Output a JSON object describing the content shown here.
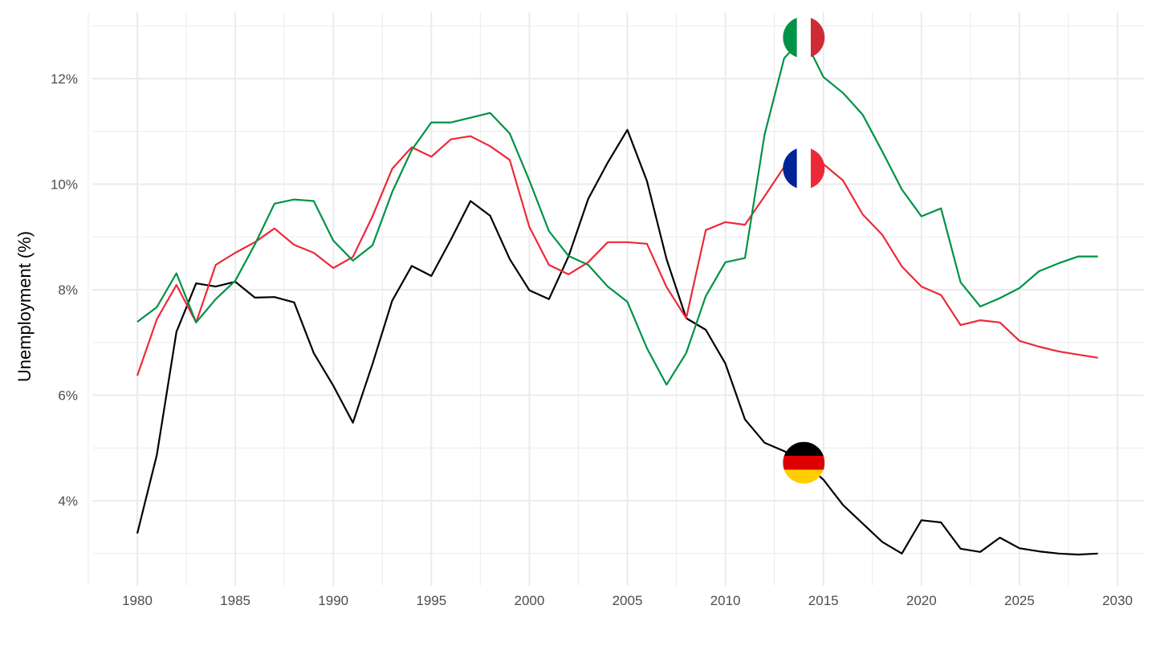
{
  "chart_data": {
    "type": "line",
    "title": "",
    "xlabel": "",
    "ylabel": "Unemployment (%)",
    "xlim": [
      1977.5,
      2031.5
    ],
    "ylim": [
      2.6,
      13.3
    ],
    "x_ticks": [
      1980,
      1985,
      1990,
      1995,
      2000,
      2005,
      2010,
      2015,
      2020,
      2025,
      2030
    ],
    "x_tick_labels": [
      "1980",
      "1985",
      "1990",
      "1995",
      "2000",
      "2005",
      "2010",
      "2015",
      "2020",
      "2025",
      "2030"
    ],
    "y_ticks": [
      4,
      6,
      8,
      10,
      12
    ],
    "y_tick_labels": [
      "4%",
      "6%",
      "8%",
      "10%",
      "12%"
    ],
    "grid": true,
    "legend": "flags at 2014",
    "x": [
      1980,
      1981,
      1982,
      1983,
      1984,
      1985,
      1986,
      1987,
      1988,
      1989,
      1990,
      1991,
      1992,
      1993,
      1994,
      1995,
      1996,
      1997,
      1998,
      1999,
      2000,
      2001,
      2002,
      2003,
      2004,
      2005,
      2006,
      2007,
      2008,
      2009,
      2010,
      2011,
      2012,
      2013,
      2014,
      2015,
      2016,
      2017,
      2018,
      2019,
      2020,
      2021,
      2022,
      2023,
      2024,
      2025,
      2026,
      2027,
      2028,
      2029
    ],
    "series": [
      {
        "name": "Germany",
        "color": "#000000",
        "flag": [
          "#000000",
          "#DD0000",
          "#FFCE00"
        ],
        "flag_type": "horizontal",
        "values": [
          3.38,
          4.87,
          7.2,
          8.12,
          8.06,
          8.15,
          7.85,
          7.86,
          7.76,
          6.8,
          6.18,
          5.48,
          6.59,
          7.79,
          8.45,
          8.26,
          8.95,
          9.68,
          9.4,
          8.58,
          7.99,
          7.82,
          8.63,
          9.72,
          10.41,
          11.03,
          10.06,
          8.58,
          7.46,
          7.24,
          6.6,
          5.54,
          5.1,
          4.94,
          4.72,
          4.4,
          3.92,
          3.57,
          3.22,
          3.0,
          3.63,
          3.59,
          3.09,
          3.03,
          3.3,
          3.1,
          3.04,
          3.0,
          2.98,
          3.0
        ]
      },
      {
        "name": "France",
        "color": "#ED2939",
        "flag": [
          "#002395",
          "#FFFFFF",
          "#ED2939"
        ],
        "flag_type": "vertical",
        "values": [
          6.37,
          7.44,
          8.09,
          7.38,
          8.47,
          8.7,
          8.9,
          9.16,
          8.85,
          8.7,
          8.41,
          8.62,
          9.39,
          10.29,
          10.7,
          10.52,
          10.85,
          10.91,
          10.72,
          10.46,
          9.19,
          8.47,
          8.29,
          8.52,
          8.9,
          8.9,
          8.87,
          8.05,
          7.46,
          9.13,
          9.28,
          9.23,
          9.77,
          10.33,
          10.3,
          10.38,
          10.07,
          9.43,
          9.04,
          8.44,
          8.06,
          7.9,
          7.33,
          7.42,
          7.38,
          7.03,
          6.92,
          6.83,
          6.77,
          6.71
        ]
      },
      {
        "name": "Italy",
        "color": "#009246",
        "flag": [
          "#009246",
          "#FFFFFF",
          "#CE2B37"
        ],
        "flag_type": "vertical",
        "values": [
          7.39,
          7.67,
          8.31,
          7.38,
          7.82,
          8.17,
          8.86,
          9.63,
          9.71,
          9.68,
          8.93,
          8.55,
          8.84,
          9.85,
          10.65,
          11.17,
          11.17,
          11.26,
          11.35,
          10.96,
          10.07,
          9.11,
          8.64,
          8.47,
          8.06,
          7.77,
          6.89,
          6.2,
          6.8,
          7.88,
          8.52,
          8.6,
          10.94,
          12.39,
          12.78,
          12.03,
          11.73,
          11.32,
          10.62,
          9.9,
          9.39,
          9.54,
          8.14,
          7.68,
          7.84,
          8.03,
          8.35,
          8.5,
          8.63,
          8.63
        ]
      }
    ],
    "flag_year": 2014
  }
}
